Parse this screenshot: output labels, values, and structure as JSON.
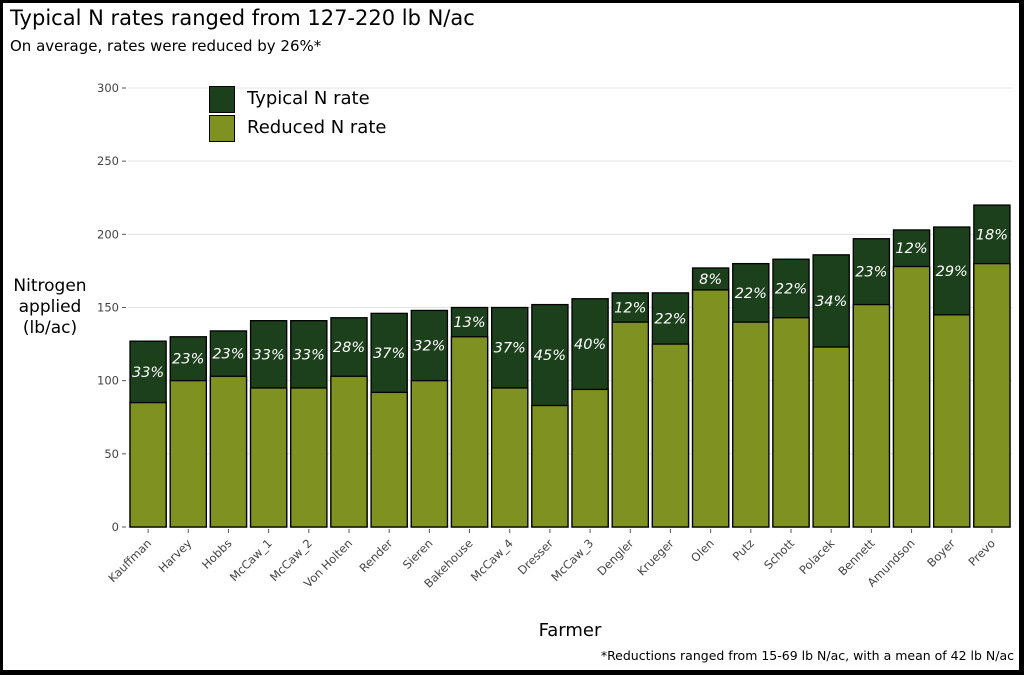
{
  "chart_data": {
    "type": "bar",
    "title": "Typical N rates ranged from 127-220 lb N/ac",
    "subtitle": "On average, rates were reduced by 26%*",
    "xlabel": "Farmer",
    "ylabel": "Nitrogen applied (lb/ac)",
    "ylim": [
      0,
      300
    ],
    "yticks": [
      0,
      50,
      100,
      150,
      200,
      250,
      300
    ],
    "grid": true,
    "legend_placement": "top-left",
    "caption": "*Reductions ranged from 15-69 lb N/ac, with a mean of 42 lb N/ac",
    "categories": [
      "Kauffman",
      "Harvey",
      "Hobbs",
      "McCaw_1",
      "McCaw_2",
      "Von Holten",
      "Render",
      "Sieren",
      "Bakehouse",
      "McCaw_4",
      "Dresser",
      "McCaw_3",
      "Dengler",
      "Krueger",
      "Olen",
      "Putz",
      "Schott",
      "Polacek",
      "Bennett",
      "Amundson",
      "Boyer",
      "Prevo"
    ],
    "series": [
      {
        "name": "Typical N rate",
        "color": "#1c3f1c",
        "values": [
          127,
          130,
          134,
          141,
          141,
          143,
          146,
          148,
          150,
          150,
          152,
          156,
          160,
          160,
          177,
          180,
          183,
          186,
          197,
          203,
          205,
          220
        ]
      },
      {
        "name": "Reduced N rate",
        "color": "#7f9221",
        "values": [
          85,
          100,
          103,
          95,
          95,
          103,
          92,
          100,
          130,
          95,
          83,
          94,
          140,
          125,
          162,
          140,
          143,
          123,
          152,
          178,
          145,
          180
        ]
      }
    ],
    "reduction_labels": [
      "33%",
      "23%",
      "23%",
      "33%",
      "33%",
      "28%",
      "37%",
      "32%",
      "13%",
      "37%",
      "45%",
      "40%",
      "12%",
      "22%",
      "8%",
      "22%",
      "22%",
      "34%",
      "23%",
      "12%",
      "29%",
      "18%"
    ]
  }
}
